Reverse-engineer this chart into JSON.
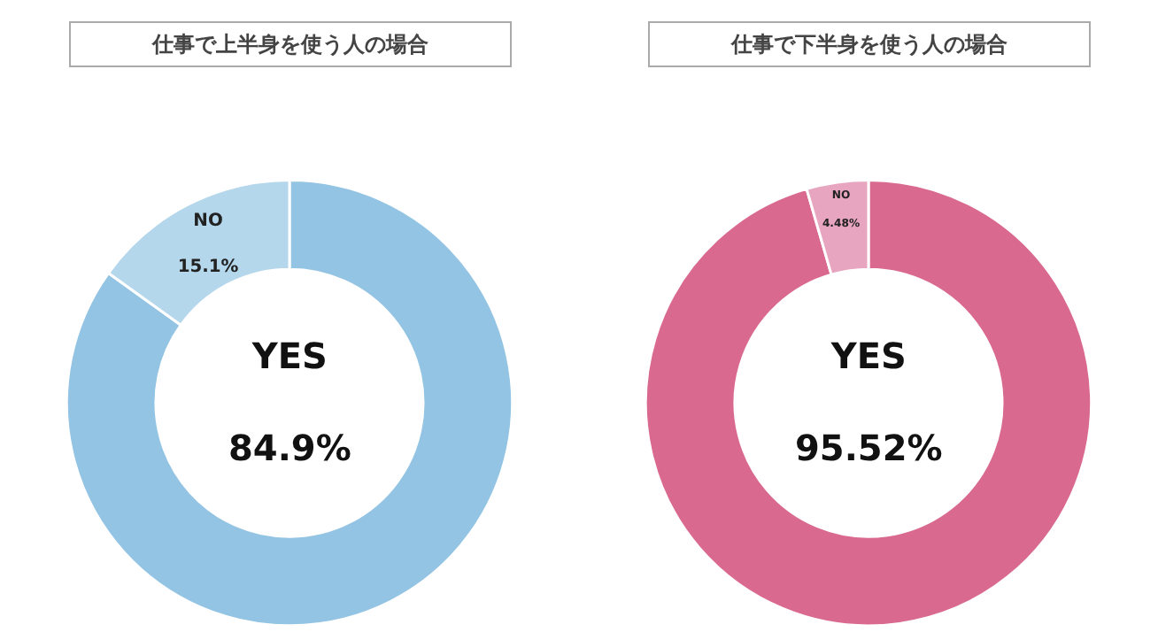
{
  "chart_data": [
    {
      "type": "donut",
      "title": "仕事で上半身を使う人の場合",
      "categories": [
        "YES",
        "NO"
      ],
      "values": [
        84.9,
        15.1
      ],
      "value_labels": [
        "84.9%",
        "15.1%"
      ],
      "colors": [
        "#93c4e3",
        "#b5d7ec"
      ],
      "legend": false
    },
    {
      "type": "donut",
      "title": "仕事で下半身を使う人の場合",
      "categories": [
        "YES",
        "NO"
      ],
      "values": [
        95.52,
        4.48
      ],
      "value_labels": [
        "95.52%",
        "4.48%"
      ],
      "colors": [
        "#d9698f",
        "#e8a5bf"
      ],
      "legend": false
    }
  ]
}
